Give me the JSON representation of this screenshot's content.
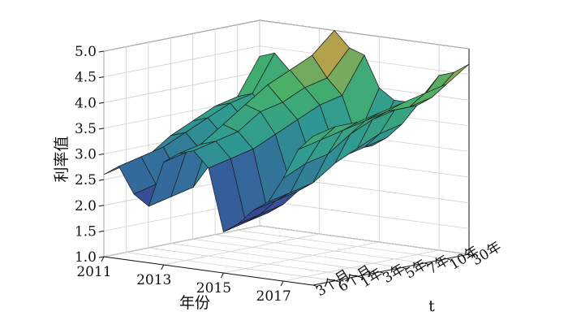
{
  "chart_data": {
    "type": "surface3d",
    "title": "",
    "zlabel": "利率值",
    "xlabel": "年份",
    "ylabel": "t",
    "zlim": [
      1.0,
      5.0
    ],
    "z_ticks": [
      "1.0",
      "1.5",
      "2.0",
      "2.5",
      "3.0",
      "3.5",
      "4.0",
      "4.5",
      "5.0"
    ],
    "x_ticks": [
      "2011",
      "2013",
      "2015",
      "2017"
    ],
    "y_ticks": [
      "3个月",
      "6个月",
      "1年",
      "3年",
      "5年",
      "7年",
      "10年",
      "30年"
    ],
    "grid": true,
    "colormap": [
      "#3b2a8e",
      "#34679b",
      "#2f9a92",
      "#45b06a",
      "#f09a3a"
    ],
    "years": [
      2011,
      2011.5,
      2012,
      2012.5,
      2013,
      2013.5,
      2014,
      2014.5,
      2015,
      2015.5,
      2016,
      2016.5,
      2017,
      2017.5,
      2018
    ],
    "series": [
      {
        "name": "3个月",
        "values": [
          2.6,
          2.8,
          2.3,
          2.1,
          3.0,
          3.2,
          3.3,
          3.0,
          1.8,
          2.0,
          2.3,
          2.5,
          3.0,
          3.6,
          3.9
        ]
      },
      {
        "name": "6个月",
        "values": [
          2.7,
          2.9,
          2.4,
          2.2,
          3.1,
          3.3,
          3.4,
          3.1,
          1.9,
          2.1,
          2.4,
          2.6,
          3.2,
          3.7,
          4.0
        ]
      },
      {
        "name": "1年",
        "values": [
          2.8,
          3.0,
          2.5,
          2.3,
          3.2,
          3.6,
          3.5,
          3.2,
          2.0,
          2.2,
          2.5,
          2.7,
          3.3,
          3.8,
          4.0
        ]
      },
      {
        "name": "3年",
        "values": [
          3.1,
          3.2,
          2.9,
          2.8,
          3.5,
          3.9,
          3.8,
          3.4,
          2.5,
          2.6,
          2.8,
          3.0,
          3.6,
          3.9,
          4.1
        ]
      },
      {
        "name": "5年",
        "values": [
          3.3,
          3.4,
          3.1,
          3.0,
          3.7,
          4.2,
          3.9,
          3.6,
          2.8,
          2.9,
          3.0,
          3.2,
          3.8,
          4.0,
          4.2
        ]
      },
      {
        "name": "7年",
        "values": [
          3.5,
          3.6,
          3.3,
          3.2,
          3.9,
          4.4,
          4.1,
          3.8,
          3.0,
          3.0,
          3.1,
          3.4,
          3.9,
          4.0,
          4.3
        ]
      },
      {
        "name": "10年",
        "values": [
          3.6,
          3.7,
          3.4,
          3.3,
          4.0,
          4.6,
          4.2,
          3.9,
          3.1,
          3.0,
          3.2,
          3.5,
          3.9,
          4.1,
          4.4
        ]
      },
      {
        "name": "30年",
        "values": [
          4.3,
          4.4,
          4.1,
          4.0,
          4.5,
          5.0,
          4.7,
          4.6,
          4.0,
          3.8,
          3.8,
          4.0,
          4.4,
          4.5,
          4.7
        ]
      }
    ]
  }
}
